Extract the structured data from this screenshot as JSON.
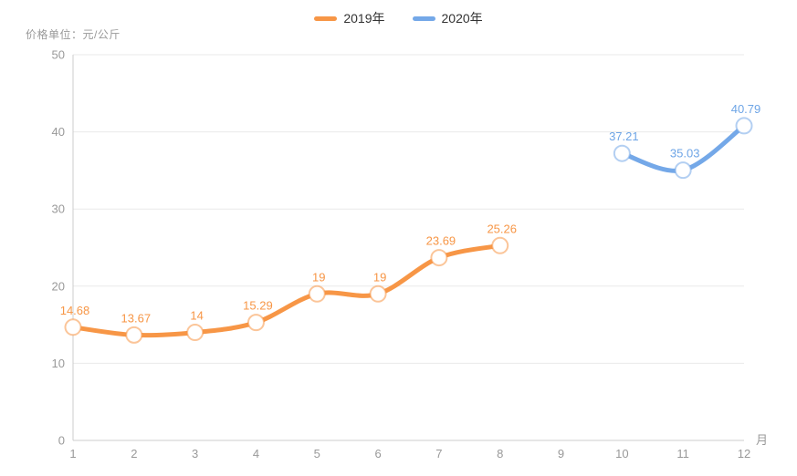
{
  "chart_data": {
    "type": "line",
    "y_axis_name": "价格单位：元/公斤",
    "x_axis_name": "月",
    "categories": [
      1,
      2,
      3,
      4,
      5,
      6,
      7,
      8,
      9,
      10,
      11,
      12
    ],
    "y_ticks": [
      0,
      10,
      20,
      30,
      40,
      50
    ],
    "ylim": [
      0,
      50
    ],
    "grid": true,
    "legend_position": "top",
    "smooth": true,
    "colors": {
      "grid_line": "#e9e9e9",
      "axis_line": "#cccccc",
      "tick_text": "#999999",
      "legend_text": "#333333",
      "marker_fill": "#ffffff"
    },
    "series": [
      {
        "name": "2019年",
        "color": "#f79646",
        "label_color": "#f79646",
        "x": [
          1,
          2,
          3,
          4,
          5,
          6,
          7,
          8
        ],
        "values": [
          14.68,
          13.67,
          14,
          15.29,
          19,
          19,
          23.69,
          25.26
        ]
      },
      {
        "name": "2020年",
        "color": "#74a8e8",
        "label_color": "#6ea5e6",
        "x": [
          10,
          11,
          12
        ],
        "values": [
          37.21,
          35.03,
          40.79
        ]
      }
    ]
  }
}
